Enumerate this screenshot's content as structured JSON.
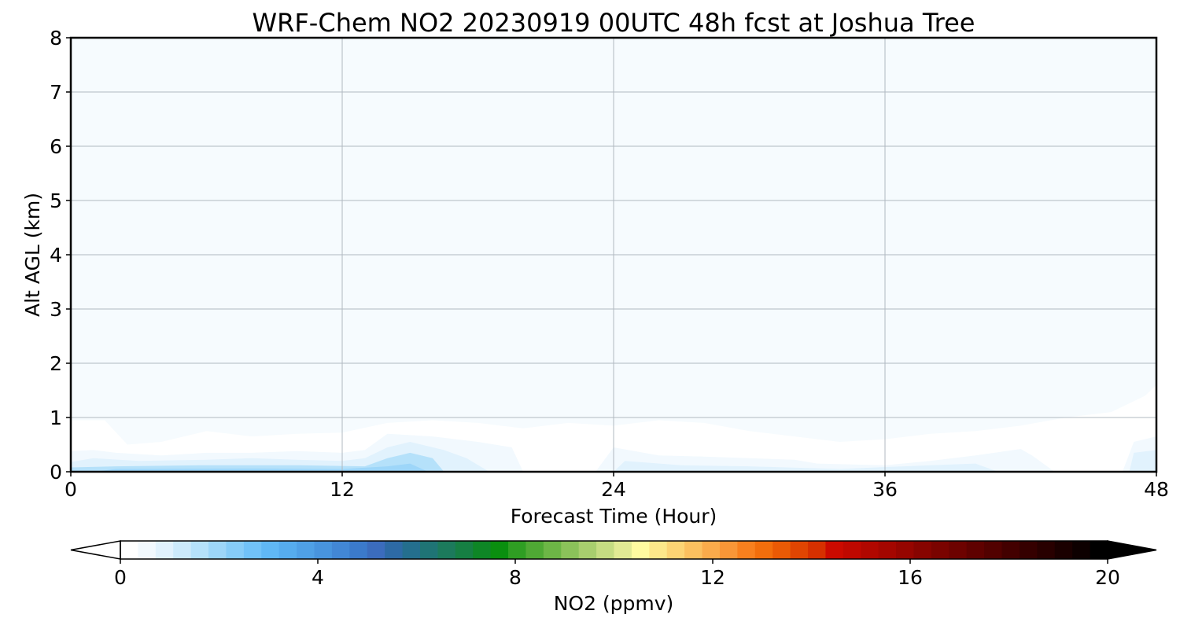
{
  "chart_data": {
    "type": "heatmap",
    "title": "WRF-Chem NO2  20230919 00UTC 48h fcst at Joshua Tree",
    "xlabel": "Forecast Time (Hour)",
    "ylabel": "Alt AGL (km)",
    "xlim": [
      0,
      48
    ],
    "ylim": [
      0,
      8
    ],
    "xticks": [
      0,
      12,
      24,
      36,
      48
    ],
    "yticks": [
      0,
      1,
      2,
      3,
      4,
      5,
      6,
      7,
      8
    ],
    "grid": true,
    "background_value": 0.05,
    "contours": [
      {
        "level": 0.2,
        "points": [
          [
            0,
            0
          ],
          [
            0,
            0.95
          ],
          [
            1.5,
            0.95
          ],
          [
            2.5,
            0.5
          ],
          [
            4,
            0.55
          ],
          [
            6,
            0.75
          ],
          [
            8,
            0.65
          ],
          [
            10,
            0.7
          ],
          [
            12,
            0.72
          ],
          [
            14,
            0.9
          ],
          [
            16,
            0.95
          ],
          [
            18,
            0.9
          ],
          [
            20,
            0.8
          ],
          [
            22,
            0.9
          ],
          [
            24,
            0.85
          ],
          [
            26,
            0.95
          ],
          [
            28,
            0.9
          ],
          [
            30,
            0.75
          ],
          [
            32,
            0.65
          ],
          [
            34,
            0.55
          ],
          [
            36,
            0.6
          ],
          [
            38,
            0.7
          ],
          [
            40,
            0.75
          ],
          [
            42,
            0.85
          ],
          [
            44,
            1.0
          ],
          [
            46,
            1.1
          ],
          [
            47.5,
            1.4
          ],
          [
            48,
            1.6
          ],
          [
            48,
            0
          ]
        ]
      },
      {
        "level": 0.5,
        "points": [
          [
            0,
            0
          ],
          [
            0,
            0.38
          ],
          [
            1,
            0.4
          ],
          [
            2,
            0.35
          ],
          [
            4,
            0.3
          ],
          [
            6,
            0.35
          ],
          [
            8,
            0.35
          ],
          [
            10,
            0.38
          ],
          [
            12,
            0.35
          ],
          [
            13,
            0.4
          ],
          [
            14,
            0.7
          ],
          [
            16,
            0.65
          ],
          [
            18,
            0.55
          ],
          [
            19.5,
            0.45
          ],
          [
            20,
            0
          ],
          [
            23.2,
            0
          ],
          [
            24,
            0.45
          ],
          [
            26,
            0.3
          ],
          [
            28,
            0.28
          ],
          [
            30,
            0.25
          ],
          [
            32,
            0.22
          ],
          [
            33,
            0.15
          ],
          [
            36,
            0.12
          ],
          [
            38,
            0.2
          ],
          [
            40,
            0.3
          ],
          [
            42,
            0.42
          ],
          [
            42.5,
            0.3
          ],
          [
            43.5,
            0
          ],
          [
            46.5,
            0
          ],
          [
            47,
            0.55
          ],
          [
            48,
            0.65
          ],
          [
            48,
            0
          ]
        ]
      },
      {
        "level": 1.0,
        "points": [
          [
            0,
            0
          ],
          [
            0,
            0.18
          ],
          [
            1,
            0.25
          ],
          [
            3,
            0.2
          ],
          [
            6,
            0.22
          ],
          [
            8,
            0.25
          ],
          [
            10,
            0.22
          ],
          [
            12,
            0.2
          ],
          [
            13,
            0.25
          ],
          [
            14,
            0.45
          ],
          [
            15,
            0.55
          ],
          [
            16.5,
            0.4
          ],
          [
            17.5,
            0.25
          ],
          [
            18.5,
            0
          ],
          [
            24,
            0
          ],
          [
            24.5,
            0.2
          ],
          [
            27,
            0.12
          ],
          [
            30,
            0.1
          ],
          [
            34,
            0.05
          ],
          [
            38,
            0.12
          ],
          [
            40,
            0.15
          ],
          [
            41,
            0
          ],
          [
            46.8,
            0
          ],
          [
            47,
            0.35
          ],
          [
            48,
            0.4
          ],
          [
            48,
            0
          ]
        ]
      },
      {
        "level": 1.5,
        "points": [
          [
            0,
            0
          ],
          [
            0,
            0.08
          ],
          [
            2,
            0.1
          ],
          [
            6,
            0.12
          ],
          [
            10,
            0.12
          ],
          [
            13,
            0.1
          ],
          [
            14,
            0.25
          ],
          [
            15,
            0.35
          ],
          [
            16,
            0.25
          ],
          [
            16.5,
            0
          ]
        ]
      },
      {
        "level": 2.0,
        "points": [
          [
            1,
            0
          ],
          [
            2,
            0.05
          ],
          [
            8,
            0.06
          ],
          [
            12,
            0.05
          ],
          [
            14,
            0.1
          ],
          [
            15,
            0.15
          ],
          [
            15.8,
            0
          ]
        ]
      }
    ],
    "colorbar": {
      "label": "NO2  (ppmv)",
      "min": 0,
      "max": 20,
      "ticks": [
        0,
        4,
        8,
        12,
        16,
        20
      ],
      "extend": "both",
      "colors": [
        "#ffffff",
        "#f2f9fe",
        "#e1f2fd",
        "#cceafb",
        "#b5e1fa",
        "#9dd6f9",
        "#86ccf8",
        "#71c2f8",
        "#60b8f5",
        "#56acee",
        "#4fa0e6",
        "#4894de",
        "#4287d5",
        "#3b7acb",
        "#3b6cbd",
        "#2d6aa5",
        "#246f8e",
        "#1f7475",
        "#1c7a5c",
        "#167f43",
        "#0e8626",
        "#0a8f0f",
        "#2f9e23",
        "#4fa934",
        "#6db646",
        "#8bc25a",
        "#a8ce6e",
        "#c5dc82",
        "#e2ea94",
        "#fffba0",
        "#fde88a",
        "#fcd474",
        "#fbc05f",
        "#faab4b",
        "#f99637",
        "#f8801e",
        "#f26e0c",
        "#ea5a05",
        "#e14502",
        "#d63000",
        "#cb0a00",
        "#bf0800",
        "#b10700",
        "#a40600",
        "#960500",
        "#870400",
        "#7a0300",
        "#6d0200",
        "#5f0100",
        "#520100",
        "#430000",
        "#350000",
        "#280000",
        "#1a0000",
        "#0d0000",
        "#000000"
      ]
    }
  }
}
